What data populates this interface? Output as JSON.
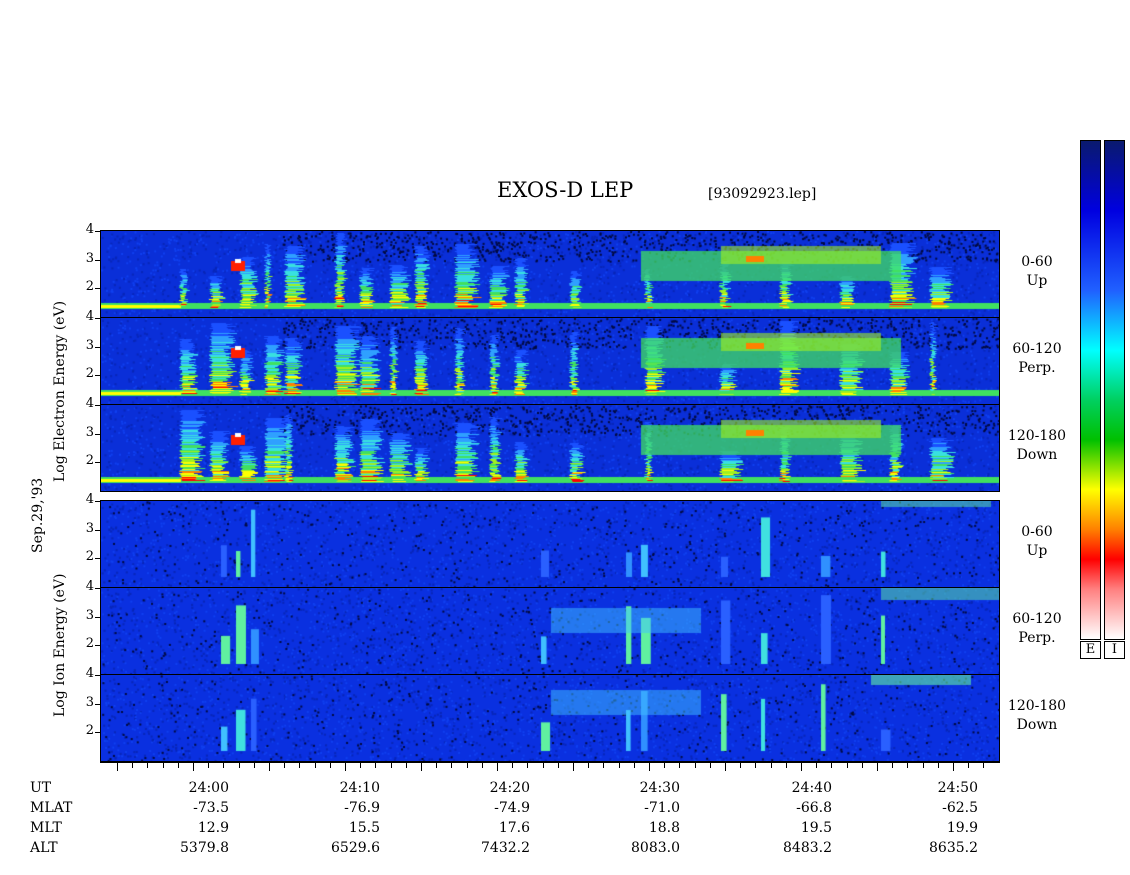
{
  "header": {
    "title": "EXOS-D LEP",
    "file": "[93092923.lep]"
  },
  "date_label": "Sep.29,'93",
  "electron_ylabel": "Log Electron Energy (eV)",
  "ion_ylabel": "Log Ion Energy (eV)",
  "panel_labels": [
    {
      "range": "0-60",
      "dir": "Up"
    },
    {
      "range": "60-120",
      "dir": "Perp."
    },
    {
      "range": "120-180",
      "dir": "Down"
    },
    {
      "range": "0-60",
      "dir": "Up"
    },
    {
      "range": "60-120",
      "dir": "Perp."
    },
    {
      "range": "120-180",
      "dir": "Down"
    }
  ],
  "colorbar_labels": [
    "E",
    "I"
  ],
  "row_headers": [
    "UT",
    "MLAT",
    "MLT",
    "ALT"
  ],
  "chart_data": {
    "type": "heatmap",
    "title": "EXOS-D LEP",
    "ylabel_electron": "Log Electron Energy (eV)",
    "ylabel_ion": "Log Ion Energy (eV)",
    "y_ticks": [
      2,
      3,
      4
    ],
    "ylim": [
      1,
      4
    ],
    "x_ticks_ut": [
      "24:00",
      "24:10",
      "24:20",
      "24:30",
      "24:40",
      "24:50"
    ],
    "mlat": [
      "-73.5",
      "-76.9",
      "-74.9",
      "-71.0",
      "-66.8",
      "-62.5"
    ],
    "mlt": [
      "12.9",
      "15.5",
      "17.6",
      "18.8",
      "19.5",
      "19.9"
    ],
    "alt": [
      "5379.8",
      "6529.6",
      "7432.2",
      "8083.0",
      "8483.2",
      "8635.2"
    ],
    "panels": [
      "Electron 0-60 Up",
      "Electron 60-120 Perp.",
      "Electron 120-180 Down",
      "Ion 0-60 Up",
      "Ion 60-120 Perp.",
      "Ion 120-180 Down"
    ],
    "colorscale": [
      "#ffffff",
      "#ff0000",
      "#ff8000",
      "#ffff00",
      "#00c000",
      "#00ffff",
      "#0000ff",
      "#000080"
    ]
  }
}
